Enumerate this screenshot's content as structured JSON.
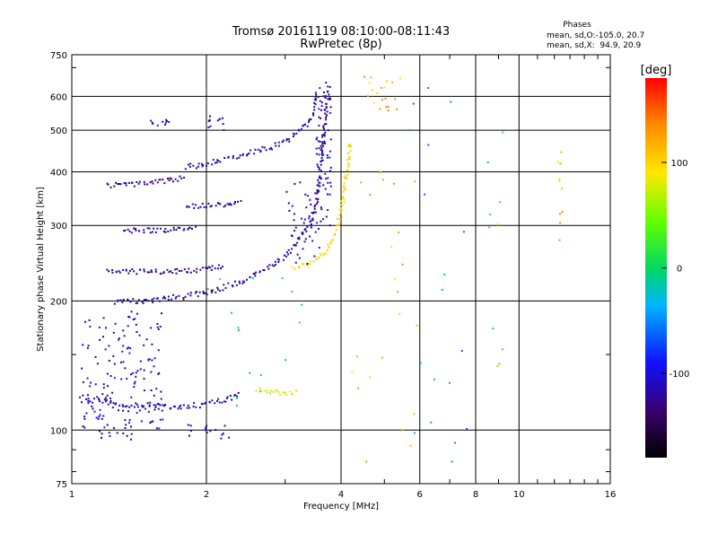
{
  "chart_data": {
    "type": "scatter",
    "title": "Tromsø 20161119 08:10:00-08:11:43",
    "subtitle": "RwPretec (8p)",
    "xlabel": "Frequency [MHz]",
    "ylabel": "Stationary phase Virtual Height [km]",
    "x_scale": "log",
    "y_scale": "log",
    "xlim": [
      1,
      16
    ],
    "ylim": [
      75,
      750
    ],
    "x_ticks": [
      1,
      2,
      4,
      6,
      8,
      10,
      16
    ],
    "y_ticks": [
      75,
      100,
      200,
      300,
      400,
      500,
      600,
      750
    ],
    "phase_box": {
      "heading": "Phases",
      "line_o": "mean, sd,O:-105.0, 20.7",
      "line_x": "mean, sd,X:  94.9, 20.9"
    },
    "colorbar": {
      "label": "[deg]",
      "range": [
        -180,
        180
      ],
      "ticks": [
        100,
        0,
        -100
      ]
    },
    "traces": [
      {
        "mode": "curve",
        "phase": -115,
        "jitter": 0.012,
        "points": [
          [
            1.05,
            118
          ],
          [
            1.2,
            116
          ],
          [
            1.4,
            114
          ],
          [
            1.7,
            113
          ],
          [
            2.0,
            115
          ],
          [
            2.2,
            118
          ],
          [
            2.4,
            121
          ]
        ]
      },
      {
        "mode": "curve",
        "phase": 85,
        "jitter": 0.01,
        "points": [
          [
            2.6,
            124
          ],
          [
            2.8,
            123
          ],
          [
            3.0,
            122
          ],
          [
            3.2,
            123
          ]
        ]
      },
      {
        "mode": "curve",
        "phase": -120,
        "jitter": 0.012,
        "points": [
          [
            1.25,
            198
          ],
          [
            1.5,
            201
          ],
          [
            1.8,
            205
          ],
          [
            2.1,
            212
          ],
          [
            2.4,
            222
          ],
          [
            2.7,
            236
          ],
          [
            3.0,
            256
          ],
          [
            3.2,
            275
          ],
          [
            3.4,
            300
          ],
          [
            3.55,
            345
          ],
          [
            3.6,
            400
          ],
          [
            3.65,
            480
          ],
          [
            3.7,
            560
          ],
          [
            3.75,
            640
          ]
        ]
      },
      {
        "mode": "curve",
        "phase": -125,
        "jitter": 0.01,
        "points": [
          [
            1.2,
            236
          ],
          [
            1.4,
            234
          ],
          [
            1.6,
            234
          ],
          [
            1.8,
            235
          ],
          [
            2.0,
            237
          ],
          [
            2.2,
            241
          ]
        ]
      },
      {
        "mode": "curve",
        "phase": -125,
        "jitter": 0.01,
        "points": [
          [
            1.3,
            292
          ],
          [
            1.5,
            292
          ],
          [
            1.7,
            293
          ],
          [
            1.9,
            296
          ]
        ]
      },
      {
        "mode": "curve",
        "phase": -125,
        "jitter": 0.01,
        "points": [
          [
            1.2,
            372
          ],
          [
            1.4,
            374
          ],
          [
            1.6,
            380
          ],
          [
            1.8,
            388
          ]
        ]
      },
      {
        "mode": "curve",
        "phase": -115,
        "jitter": 0.012,
        "points": [
          [
            1.8,
            410
          ],
          [
            2.0,
            418
          ],
          [
            2.3,
            435
          ],
          [
            2.6,
            448
          ],
          [
            2.9,
            462
          ],
          [
            3.2,
            490
          ],
          [
            3.4,
            525
          ],
          [
            3.5,
            570
          ],
          [
            3.55,
            610
          ]
        ]
      },
      {
        "mode": "curve",
        "phase": -115,
        "jitter": 0.01,
        "points": [
          [
            1.8,
            332
          ],
          [
            2.0,
            334
          ],
          [
            2.2,
            336
          ],
          [
            2.4,
            340
          ]
        ]
      },
      {
        "mode": "curve",
        "phase": 95,
        "jitter": 0.013,
        "points": [
          [
            3.1,
            238
          ],
          [
            3.3,
            242
          ],
          [
            3.5,
            250
          ],
          [
            3.7,
            262
          ],
          [
            3.85,
            280
          ],
          [
            3.95,
            305
          ],
          [
            4.05,
            340
          ],
          [
            4.1,
            380
          ],
          [
            4.15,
            425
          ],
          [
            4.2,
            470
          ]
        ]
      },
      {
        "mode": "cloud",
        "phase": -110,
        "n": 150,
        "x": [
          1.05,
          1.6
        ],
        "y": [
          100,
          190
        ]
      },
      {
        "mode": "cloud",
        "phase": -110,
        "n": 70,
        "x": [
          3.5,
          3.8
        ],
        "y": [
          300,
          650
        ]
      },
      {
        "mode": "cloud",
        "phase": -115,
        "n": 40,
        "x": [
          3.0,
          3.6
        ],
        "y": [
          240,
          380
        ]
      },
      {
        "mode": "cloud",
        "phase": -120,
        "n": 16,
        "x": [
          1.8,
          2.3
        ],
        "y": [
          95,
          104
        ]
      },
      {
        "mode": "cloud",
        "phase": -120,
        "n": 12,
        "x": [
          1.15,
          1.4
        ],
        "y": [
          94,
          102
        ]
      },
      {
        "mode": "cloud",
        "phase": -110,
        "n": 10,
        "x": [
          1.5,
          1.65
        ],
        "y": [
          510,
          530
        ]
      },
      {
        "mode": "cloud",
        "phase": -115,
        "n": 12,
        "x": [
          2.0,
          2.2
        ],
        "y": [
          500,
          540
        ]
      },
      {
        "mode": "cloud",
        "phase": 110,
        "n": 20,
        "x": [
          4.5,
          5.5
        ],
        "y": [
          550,
          680
        ]
      },
      {
        "mode": "cloud",
        "phase": 110,
        "n": 22,
        "x": [
          4.2,
          6.0
        ],
        "y": [
          80,
          480
        ]
      },
      {
        "mode": "cloud",
        "phase": -40,
        "n": 18,
        "x": [
          5.6,
          8.0
        ],
        "y": [
          75,
          690
        ]
      },
      {
        "mode": "cloud",
        "phase": 30,
        "n": 10,
        "x": [
          8.5,
          9.2
        ],
        "y": [
          130,
          600
        ]
      },
      {
        "mode": "cloud",
        "phase": 120,
        "n": 10,
        "x": [
          12.2,
          12.5
        ],
        "y": [
          270,
          460
        ]
      },
      {
        "mode": "cloud",
        "phase": 0,
        "n": 16,
        "x": [
          2.0,
          3.3
        ],
        "y": [
          110,
          230
        ]
      }
    ]
  }
}
